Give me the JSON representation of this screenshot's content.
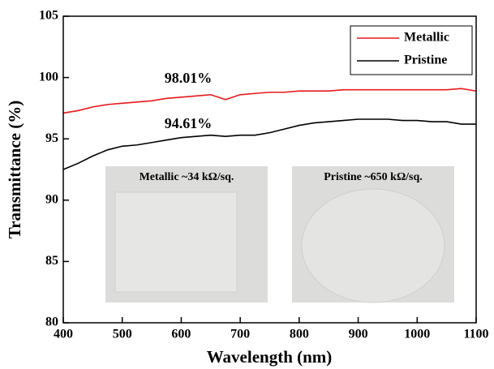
{
  "chart_data": {
    "type": "line",
    "x": [
      400,
      425,
      450,
      475,
      500,
      525,
      550,
      575,
      600,
      625,
      650,
      675,
      700,
      725,
      750,
      775,
      800,
      825,
      850,
      875,
      900,
      925,
      950,
      975,
      1000,
      1025,
      1050,
      1075,
      1100
    ],
    "series": [
      {
        "name": "Metallic",
        "color": "#e8191b",
        "values": [
          97.1,
          97.3,
          97.6,
          97.8,
          97.9,
          98.0,
          98.1,
          98.3,
          98.4,
          98.5,
          98.6,
          98.2,
          98.6,
          98.7,
          98.8,
          98.8,
          98.9,
          98.9,
          98.9,
          99.0,
          99.0,
          99.0,
          99.0,
          99.0,
          99.0,
          99.0,
          99.0,
          99.1,
          98.9
        ]
      },
      {
        "name": "Pristine",
        "color": "#000000",
        "values": [
          92.5,
          93.0,
          93.6,
          94.1,
          94.4,
          94.5,
          94.7,
          94.9,
          95.1,
          95.2,
          95.3,
          95.2,
          95.3,
          95.3,
          95.5,
          95.8,
          96.1,
          96.3,
          96.4,
          96.5,
          96.6,
          96.6,
          96.6,
          96.5,
          96.5,
          96.4,
          96.4,
          96.2,
          96.2
        ]
      }
    ],
    "xlabel": "Wavelength (nm)",
    "ylabel": "Transmittance (%)",
    "xlim": [
      400,
      1100
    ],
    "xticks": [
      400,
      500,
      600,
      700,
      800,
      900,
      1000,
      1100
    ],
    "ylim": [
      80,
      105
    ],
    "yticks": [
      80,
      85,
      90,
      95,
      100,
      105
    ],
    "legend": "top-right",
    "annotations": [
      "98.01%",
      "94.61%"
    ],
    "insets": [
      "Metallic ~34 kΩ/sq.",
      "Pristine ~650 kΩ/sq."
    ]
  }
}
